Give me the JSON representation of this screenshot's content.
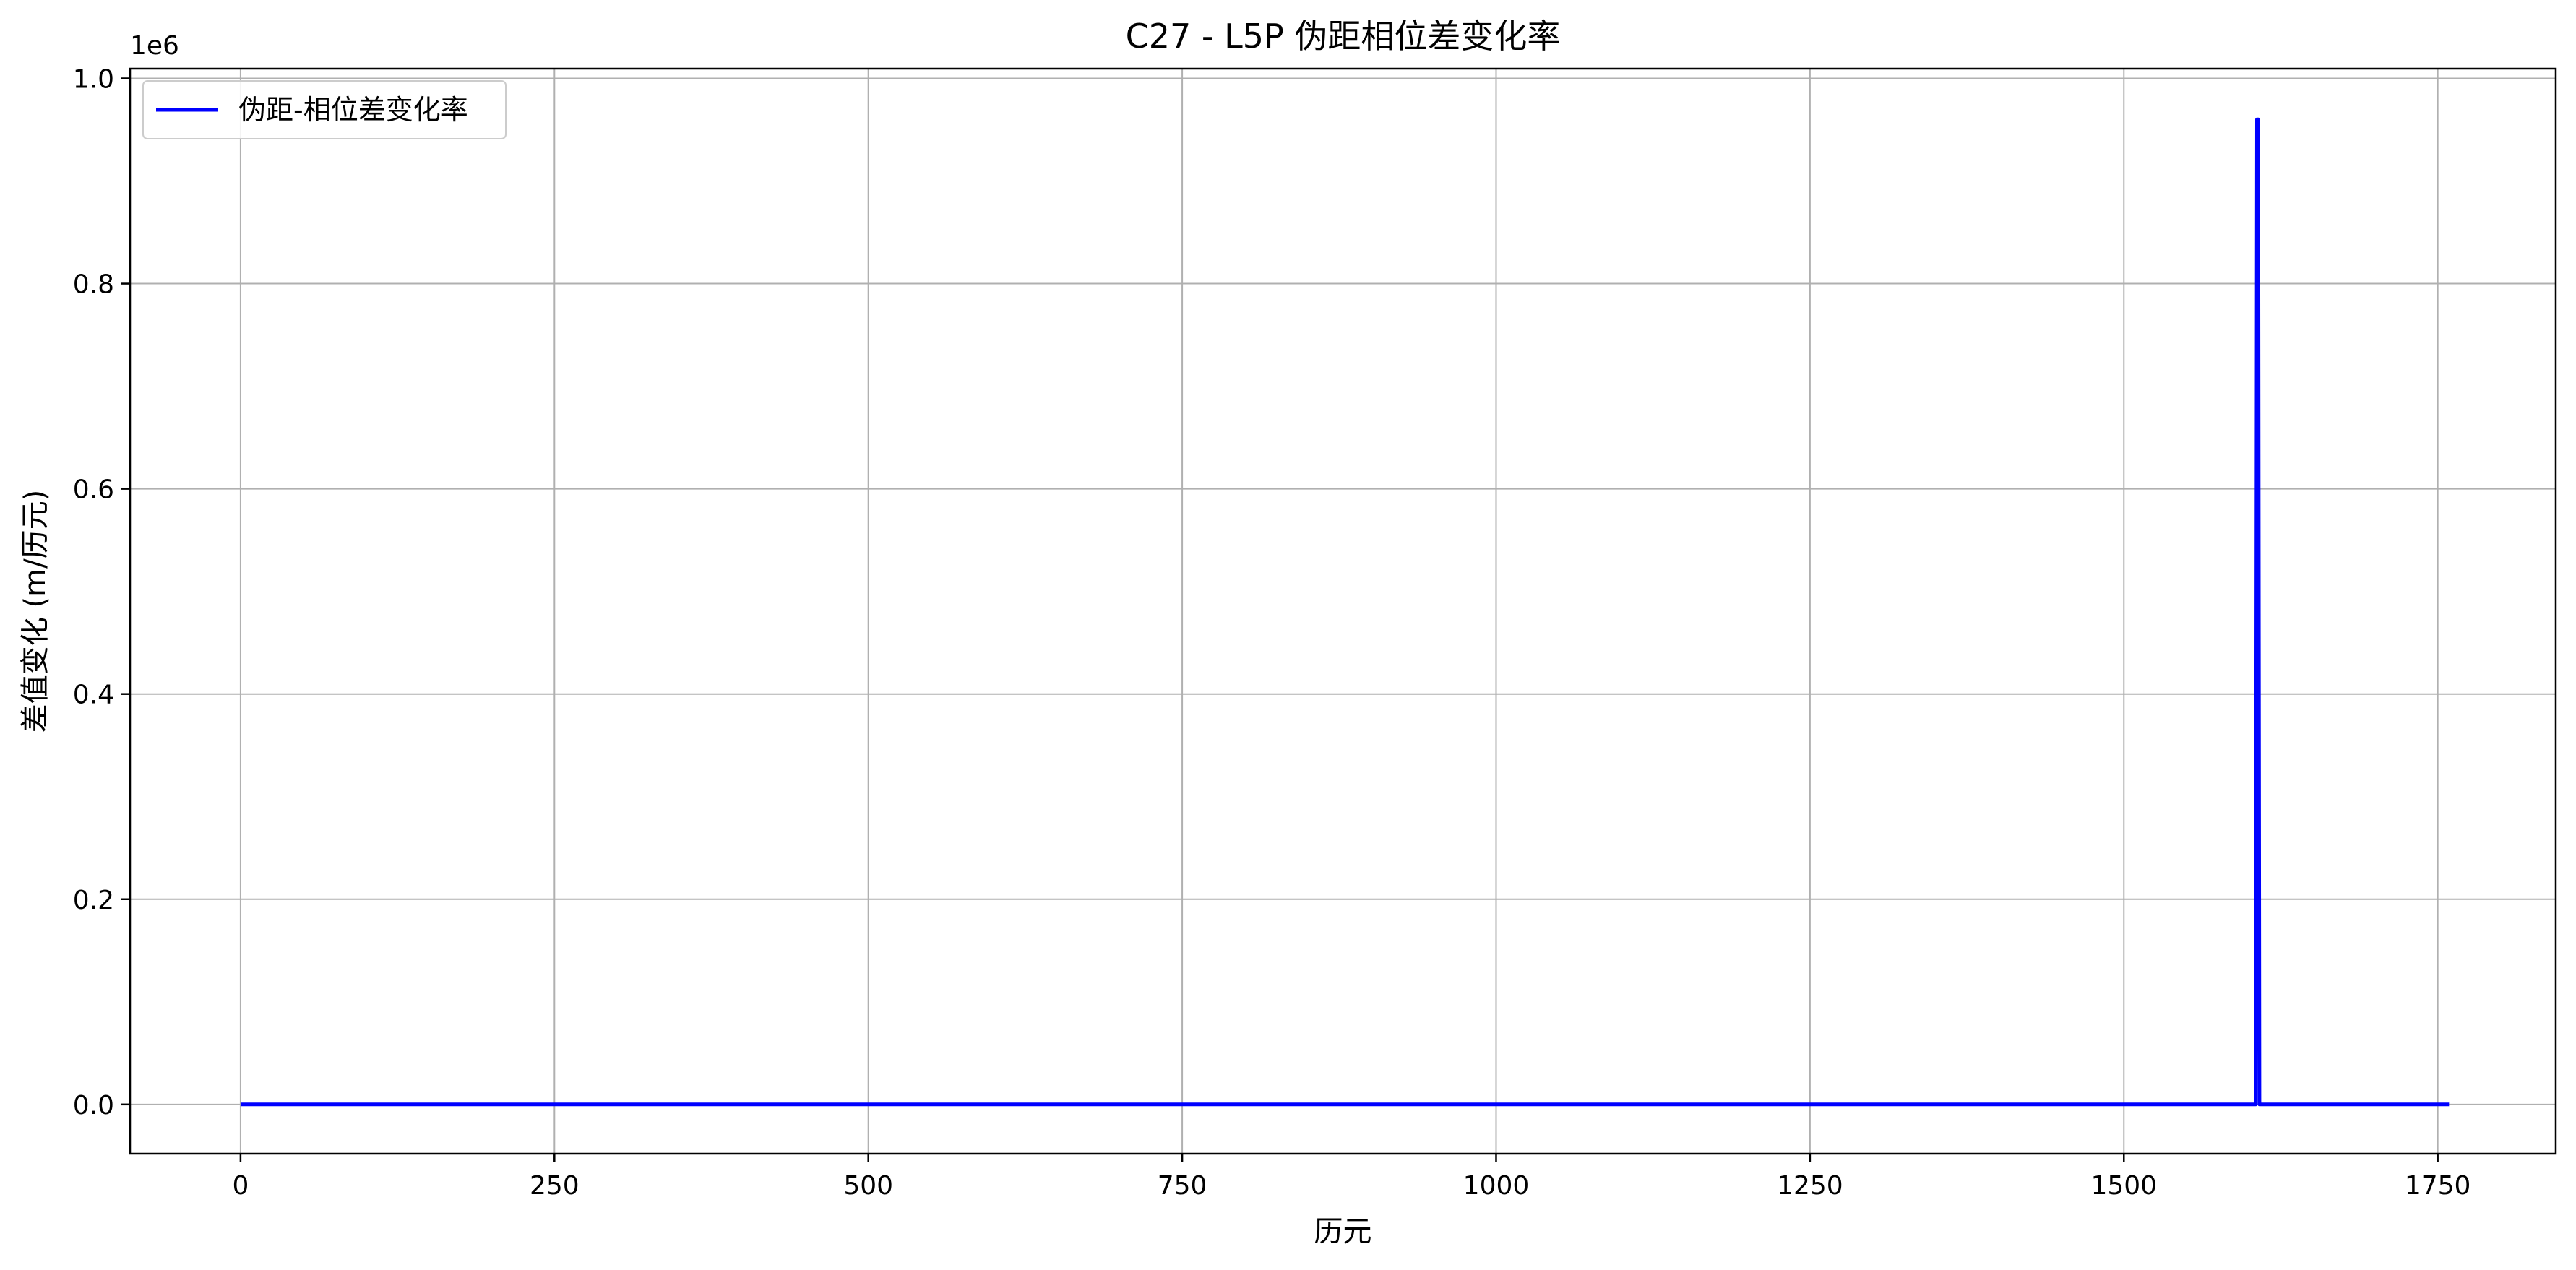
{
  "chart_data": {
    "type": "line",
    "title": "C27 - L5P 伪距相位差变化率",
    "xlabel": "历元",
    "ylabel": "差值变化 (m/历元)",
    "y_offset_label": "1e6",
    "xlim": [
      -88,
      1844
    ],
    "ylim": [
      -0.048,
      1.0095
    ],
    "x_ticks": [
      0,
      250,
      500,
      750,
      1000,
      1250,
      1500,
      1750
    ],
    "y_ticks": [
      0.0,
      0.2,
      0.4,
      0.6,
      0.8,
      1.0
    ],
    "x_tick_labels": [
      "0",
      "250",
      "500",
      "750",
      "1000",
      "1250",
      "1500",
      "1750"
    ],
    "y_tick_labels": [
      "0.0",
      "0.2",
      "0.4",
      "0.6",
      "0.8",
      "1.0"
    ],
    "grid": true,
    "legend": "top-left",
    "series": [
      {
        "name": "伪距-相位差变化率",
        "color": "#0000ff",
        "x": [
          0,
          1605,
          1606,
          1607,
          1608,
          1759
        ],
        "y": [
          0.0,
          0.0,
          0.96,
          0.96,
          0.0,
          0.0
        ]
      }
    ]
  }
}
